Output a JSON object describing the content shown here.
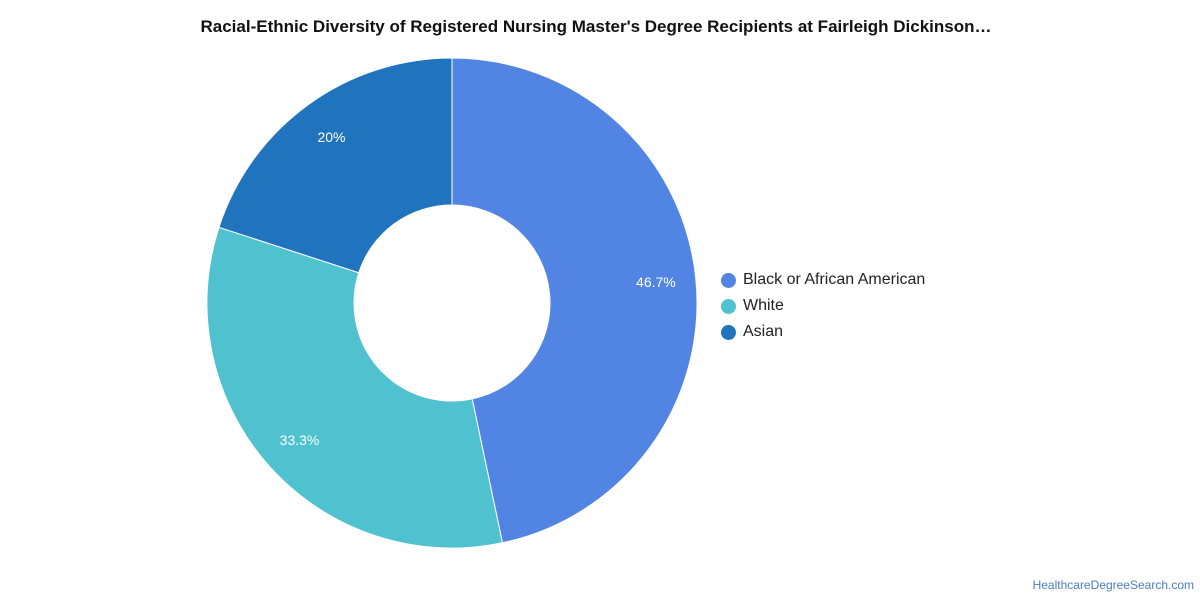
{
  "chart_data": {
    "type": "pie",
    "title": "Racial-Ethnic Diversity of Registered Nursing Master's Degree Recipients at Fairleigh Dickinson…",
    "donut": true,
    "start_angle_deg": 0,
    "categories": [
      "Black or African American",
      "White",
      "Asian"
    ],
    "values": [
      46.7,
      33.3,
      20
    ],
    "labels": [
      "46.7%",
      "33.3%",
      "20%"
    ],
    "colors": [
      "#5285e3",
      "#50c1cf",
      "#1f74bd"
    ],
    "legend_position": "right"
  },
  "source": {
    "text": "HealthcareDegreeSearch.com"
  }
}
